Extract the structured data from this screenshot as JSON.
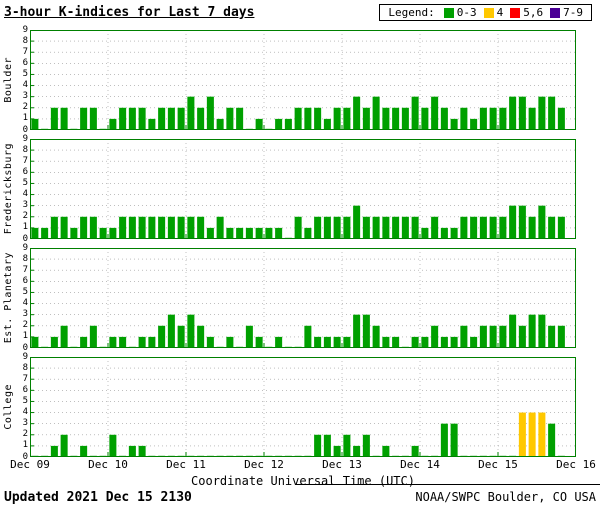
{
  "title": "3-hour K-indices for Last 7 days",
  "legend": {
    "label": "Legend:",
    "items": [
      {
        "label": "0-3",
        "color": "#00A000"
      },
      {
        "label": "4",
        "color": "#FFC800"
      },
      {
        "label": "5,6",
        "color": "#FF0000"
      },
      {
        "label": "7-9",
        "color": "#4B0096"
      }
    ]
  },
  "x_axis": {
    "label": "Coordinate Universal Time (UTC)",
    "ticks": [
      "Dec 09",
      "Dec 10",
      "Dec 11",
      "Dec 12",
      "Dec 13",
      "Dec 14",
      "Dec 15",
      "Dec 16"
    ]
  },
  "y_axis": {
    "min": 0,
    "max": 9,
    "ticks": [
      0,
      1,
      2,
      3,
      4,
      5,
      6,
      7,
      8,
      9
    ]
  },
  "footer": {
    "updated_label": "Updated",
    "updated_value": "2021 Dec 15 2130",
    "source": "NOAA/SWPC Boulder, CO USA"
  },
  "chart_data": {
    "type": "bar",
    "title": "3-hour K-indices for Last 7 days",
    "xlabel": "Coordinate Universal Time (UTC)",
    "ylabel": "",
    "ylim": [
      0,
      9
    ],
    "grid": true,
    "legend_position": "top-right",
    "days": 7,
    "bins_per_day": 8,
    "x_ticks": [
      "Dec 09",
      "Dec 10",
      "Dec 11",
      "Dec 12",
      "Dec 13",
      "Dec 14",
      "Dec 15",
      "Dec 16"
    ],
    "color_map": {
      "0-3": "#00A000",
      "4": "#FFC800",
      "5-6": "#FF0000",
      "7-9": "#4B0096"
    },
    "frame_color": "#008000",
    "grid_color": "#999999",
    "panels": [
      {
        "station": "Boulder",
        "values": [
          1,
          0,
          2,
          2,
          0,
          2,
          2,
          0,
          1,
          2,
          2,
          2,
          1,
          2,
          2,
          2,
          3,
          2,
          3,
          1,
          2,
          2,
          0,
          1,
          0,
          1,
          1,
          2,
          2,
          2,
          1,
          2,
          2,
          3,
          2,
          3,
          2,
          2,
          2,
          3,
          2,
          3,
          2,
          1,
          2,
          1,
          2,
          2,
          2,
          3,
          3,
          2,
          3,
          3,
          2,
          null
        ]
      },
      {
        "station": "Fredericksburg",
        "values": [
          1,
          1,
          2,
          2,
          1,
          2,
          2,
          1,
          1,
          2,
          2,
          2,
          2,
          2,
          2,
          2,
          2,
          2,
          1,
          2,
          1,
          1,
          1,
          1,
          1,
          1,
          0,
          2,
          1,
          2,
          2,
          2,
          2,
          3,
          2,
          2,
          2,
          2,
          2,
          2,
          1,
          2,
          1,
          1,
          2,
          2,
          2,
          2,
          2,
          3,
          3,
          2,
          3,
          2,
          2,
          null
        ]
      },
      {
        "station": "Est. Planetary",
        "values": [
          1,
          0,
          1,
          2,
          0,
          1,
          2,
          0,
          1,
          1,
          0,
          1,
          1,
          2,
          3,
          2,
          3,
          2,
          1,
          0,
          1,
          0,
          2,
          1,
          0,
          1,
          0,
          0,
          2,
          1,
          1,
          1,
          1,
          3,
          3,
          2,
          1,
          1,
          0,
          1,
          1,
          2,
          1,
          1,
          2,
          1,
          2,
          2,
          2,
          3,
          2,
          3,
          3,
          2,
          2,
          null
        ]
      },
      {
        "station": "College",
        "values": [
          0,
          0,
          1,
          2,
          0,
          1,
          0,
          0,
          2,
          0,
          1,
          1,
          0,
          0,
          0,
          0,
          0,
          0,
          0,
          0,
          0,
          0,
          0,
          0,
          0,
          0,
          0,
          0,
          0,
          2,
          2,
          1,
          2,
          1,
          2,
          0,
          1,
          0,
          0,
          1,
          0,
          0,
          3,
          3,
          0,
          0,
          0,
          0,
          0,
          0,
          4,
          4,
          4,
          3,
          0,
          null
        ]
      }
    ]
  }
}
